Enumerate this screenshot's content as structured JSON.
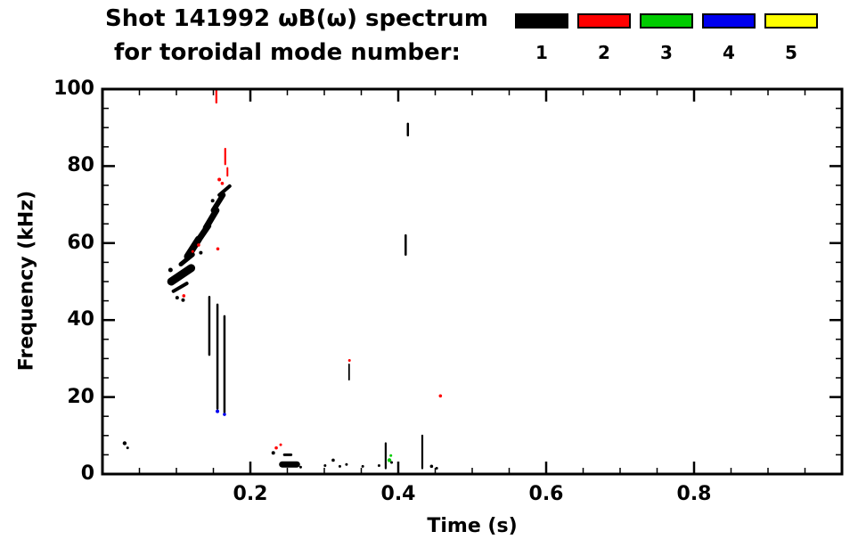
{
  "title": {
    "line1": "Shot 141992 ωB(ω) spectrum",
    "line2": "for toroidal mode number:"
  },
  "legend": {
    "items": [
      {
        "label": "1",
        "color": "#000000"
      },
      {
        "label": "2",
        "color": "#ff0000"
      },
      {
        "label": "3",
        "color": "#00cc00"
      },
      {
        "label": "4",
        "color": "#0000ee"
      },
      {
        "label": "5",
        "color": "#ffff00"
      }
    ]
  },
  "axes": {
    "xlabel": "Time (s)",
    "ylabel": "Frequency (kHz)",
    "x_tick_labels": [
      "0.2",
      "0.4",
      "0.6",
      "0.8"
    ],
    "y_tick_labels": [
      "0",
      "20",
      "40",
      "60",
      "80",
      "100"
    ]
  },
  "chart_data": {
    "type": "scatter",
    "title": "Shot 141992 ωB(ω) spectrum for toroidal mode number",
    "xlabel": "Time (s)",
    "ylabel": "Frequency (kHz)",
    "xlim": [
      0,
      1.0
    ],
    "ylim": [
      0,
      100
    ],
    "xticks": [
      0.2,
      0.4,
      0.6,
      0.8
    ],
    "x_minor_step": 0.05,
    "yticks": [
      0,
      20,
      40,
      60,
      80,
      100
    ],
    "y_minor_step": 5,
    "legend_position": "top-right",
    "grid": false,
    "series": [
      {
        "mode": 1,
        "name": "n=1",
        "color": "#000000",
        "segments": [
          [
            0.093,
            50.0,
            0.12,
            53.5,
            9
          ],
          [
            0.096,
            47.5,
            0.114,
            49.5,
            4
          ],
          [
            0.106,
            54.5,
            0.122,
            57.0,
            5
          ],
          [
            0.115,
            56.5,
            0.13,
            61.0,
            8
          ],
          [
            0.127,
            60.0,
            0.143,
            64.5,
            7
          ],
          [
            0.14,
            64.0,
            0.154,
            68.5,
            7
          ],
          [
            0.15,
            68.5,
            0.163,
            72.5,
            6
          ],
          [
            0.158,
            72.5,
            0.172,
            74.8,
            4
          ],
          [
            0.1445,
            46.0,
            0.1445,
            31.0,
            2.5
          ],
          [
            0.1555,
            44.0,
            0.1555,
            17.0,
            2.5
          ],
          [
            0.165,
            41.0,
            0.165,
            16.0,
            2.5
          ],
          [
            0.413,
            91.0,
            0.413,
            88.0,
            2.5
          ],
          [
            0.41,
            62.0,
            0.41,
            57.0,
            2.5
          ],
          [
            0.243,
            2.5,
            0.263,
            2.5,
            7
          ],
          [
            0.246,
            5.0,
            0.255,
            5.0,
            3
          ],
          [
            0.3335,
            28.5,
            0.3335,
            24.5,
            1.8
          ],
          [
            0.383,
            8.0,
            0.383,
            1.5,
            2.2
          ],
          [
            0.4325,
            10.0,
            0.4325,
            1.5,
            2.2
          ]
        ],
        "dots": [
          [
            0.03,
            8.0,
            2.2
          ],
          [
            0.034,
            6.8,
            1.5
          ],
          [
            0.092,
            53.0,
            2.5
          ],
          [
            0.101,
            45.8,
            2
          ],
          [
            0.109,
            45.2,
            2
          ],
          [
            0.121,
            58.5,
            2.5
          ],
          [
            0.133,
            57.5,
            2
          ],
          [
            0.136,
            63.0,
            2
          ],
          [
            0.149,
            71.0,
            2
          ],
          [
            0.231,
            5.5,
            2
          ],
          [
            0.268,
            1.8,
            1.5
          ],
          [
            0.301,
            2.2,
            1.5
          ],
          [
            0.312,
            3.6,
            1.8
          ],
          [
            0.321,
            2.0,
            1.5
          ],
          [
            0.33,
            2.5,
            1.5
          ],
          [
            0.352,
            2.0,
            1.5
          ],
          [
            0.374,
            2.2,
            1.5
          ],
          [
            0.391,
            3.0,
            1.5
          ],
          [
            0.445,
            2.0,
            1.8
          ],
          [
            0.452,
            1.5,
            1.5
          ]
        ]
      },
      {
        "mode": 2,
        "name": "n=2",
        "color": "#ff0000",
        "segments": [
          [
            0.154,
            100.0,
            0.154,
            96.5,
            2.2
          ],
          [
            0.166,
            84.5,
            0.166,
            80.5,
            2.2
          ],
          [
            0.169,
            79.5,
            0.169,
            77.5,
            2.0
          ]
        ],
        "dots": [
          [
            0.158,
            76.5,
            2
          ],
          [
            0.162,
            75.5,
            1.8
          ],
          [
            0.13,
            59.5,
            1.8
          ],
          [
            0.122,
            57.8,
            1.5
          ],
          [
            0.11,
            46.3,
            1.8
          ],
          [
            0.156,
            58.5,
            1.8
          ],
          [
            0.235,
            6.8,
            1.8
          ],
          [
            0.241,
            7.6,
            1.5
          ],
          [
            0.334,
            29.5,
            1.5
          ],
          [
            0.457,
            20.3,
            1.8
          ]
        ]
      },
      {
        "mode": 3,
        "name": "n=3",
        "color": "#00cc00",
        "segments": [],
        "dots": [
          [
            0.388,
            3.6,
            2.2
          ],
          [
            0.39,
            4.8,
            1.5
          ]
        ]
      },
      {
        "mode": 4,
        "name": "n=4",
        "color": "#0000ee",
        "segments": [],
        "dots": [
          [
            0.1555,
            16.3,
            2.0
          ],
          [
            0.165,
            15.5,
            1.8
          ]
        ]
      },
      {
        "mode": 5,
        "name": "n=5",
        "color": "#ffff00",
        "segments": [],
        "dots": []
      }
    ]
  }
}
